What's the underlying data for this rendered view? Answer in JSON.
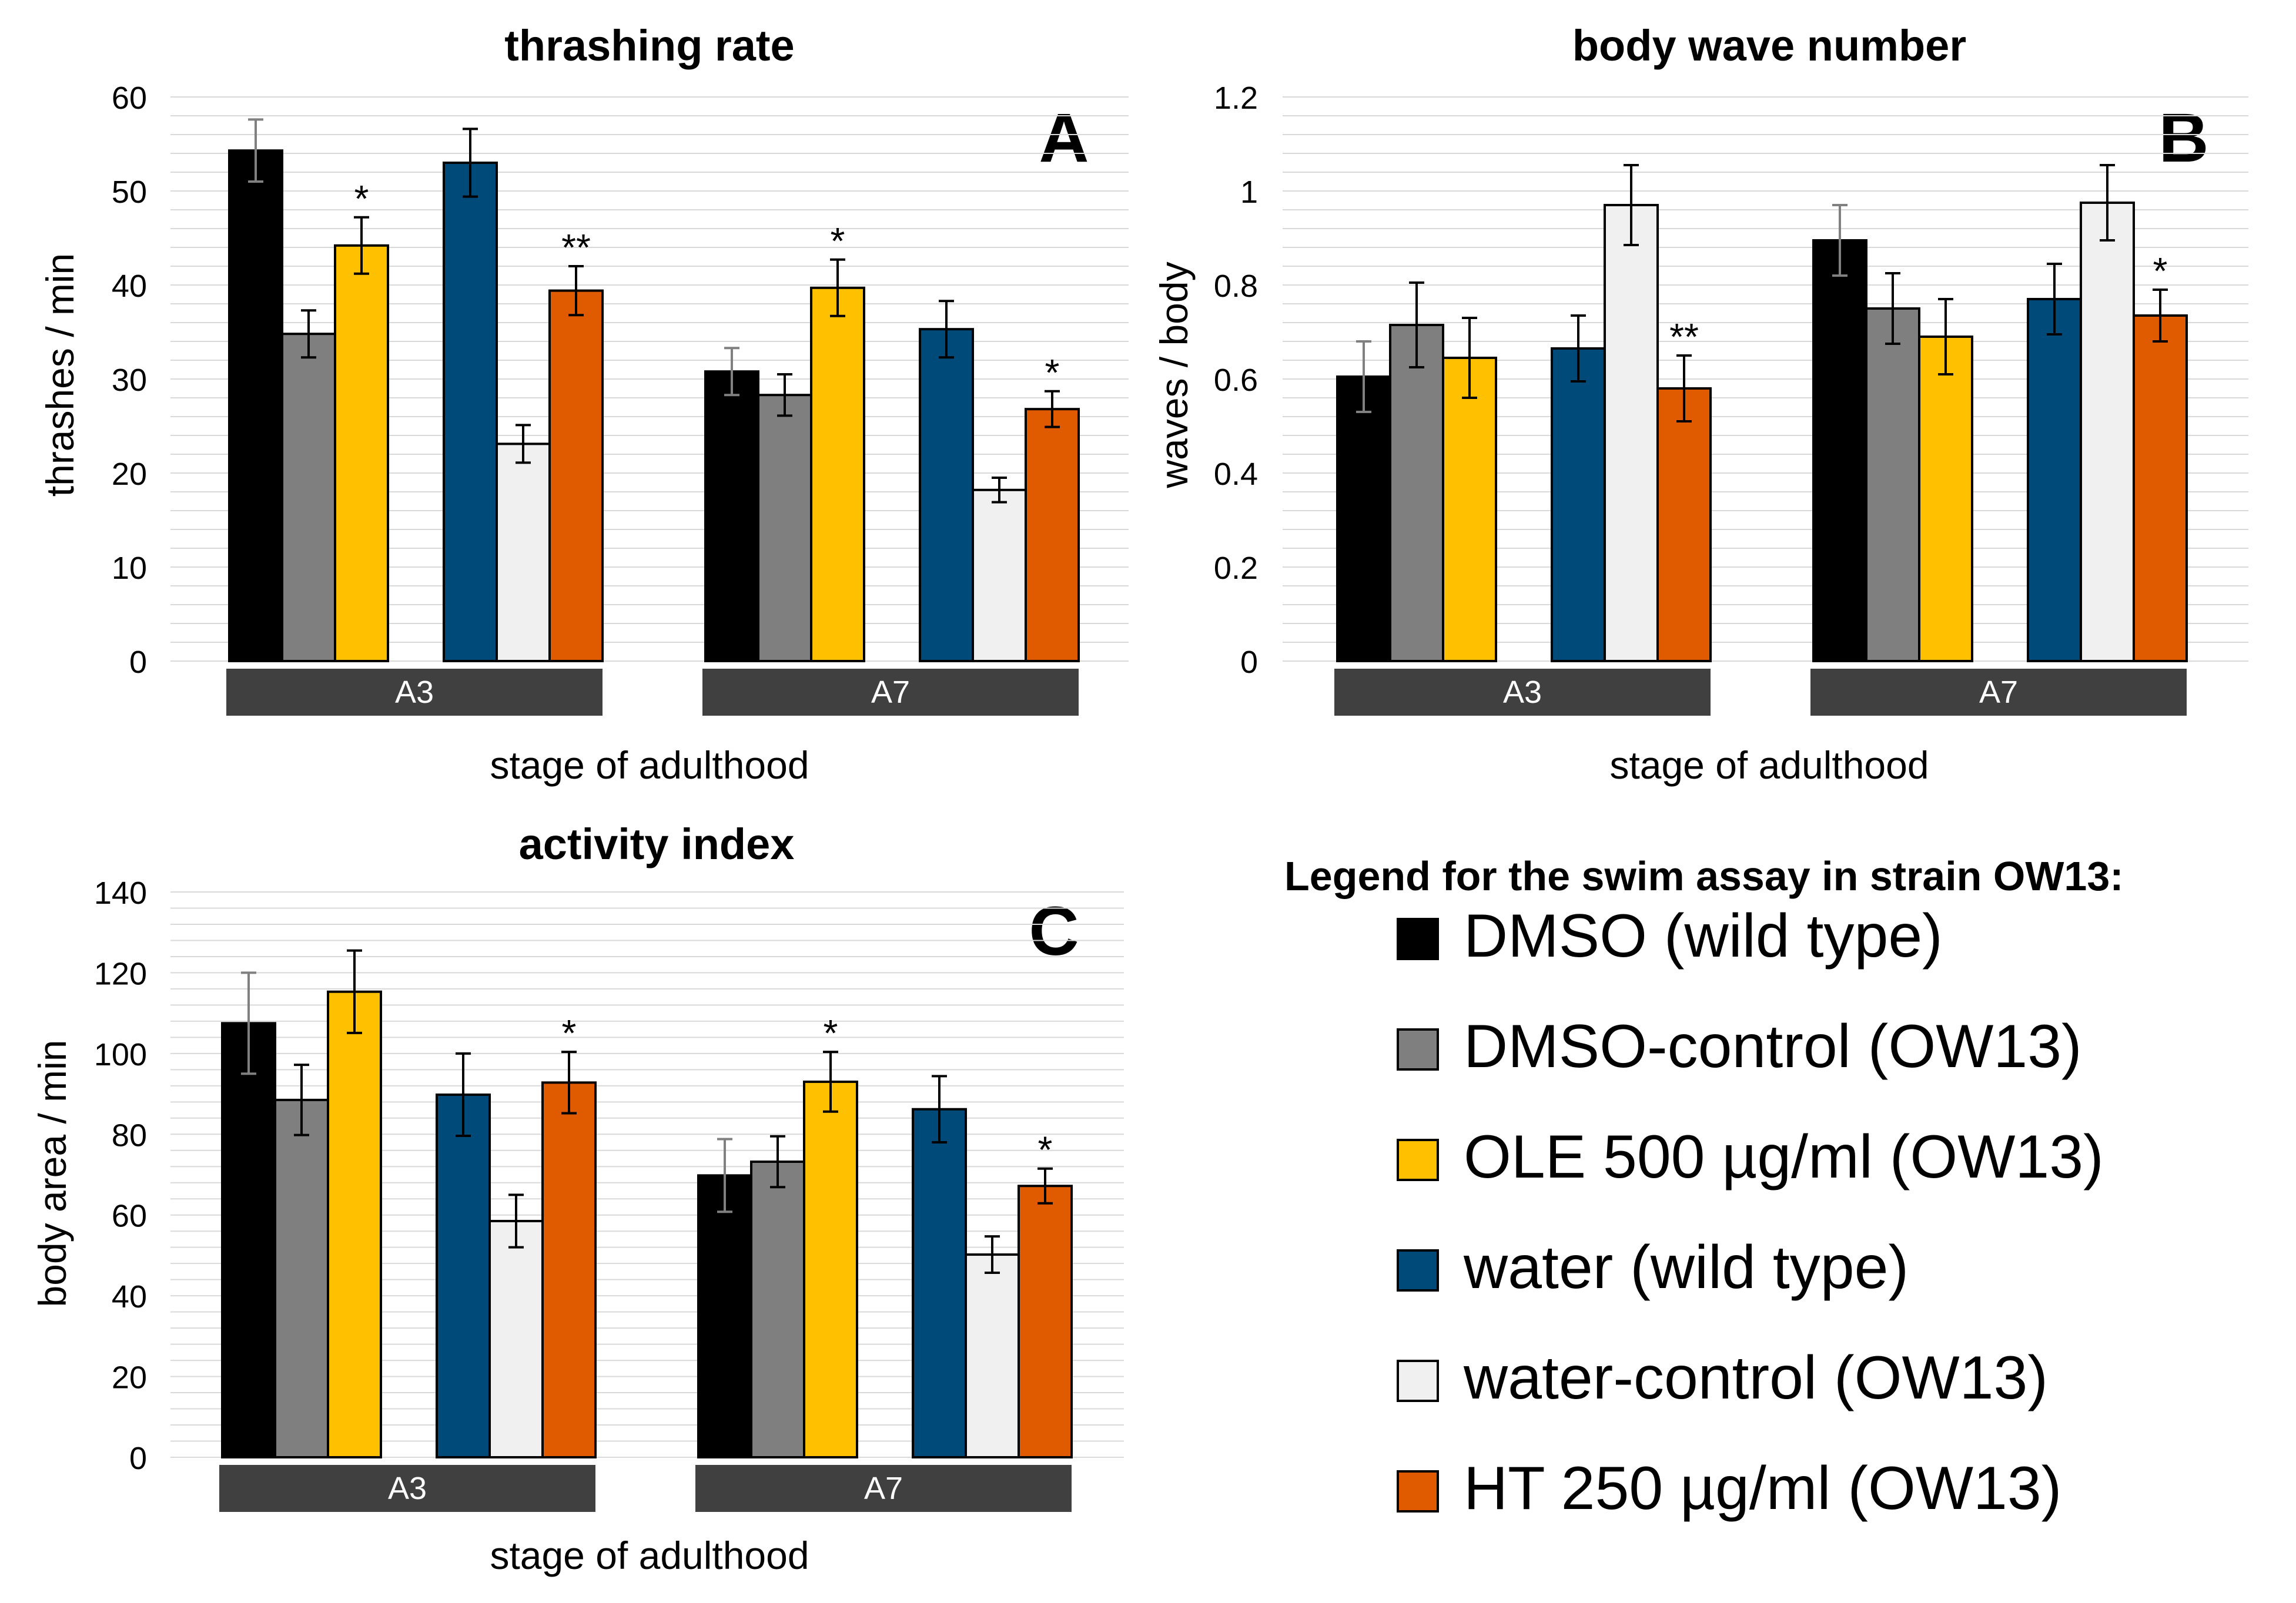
{
  "colors": {
    "DMSO (wild type)": "#000000",
    "DMSO-control (OW13)": "#7f7f7f",
    "OLE 500 µg/ml (OW13)": "#ffc000",
    "water (wild type)": "#004a7a",
    "water-control (OW13)": "#f0f0f0",
    "HT 250 µg/ml (OW13)": "#e05a00",
    "group_band": "#404040",
    "gridline": "#d9d9d9",
    "text": "#000000"
  },
  "legend": {
    "title": "Legend for the swim assay in strain OW13:",
    "entries": [
      "DMSO (wild type)",
      "DMSO-control (OW13)",
      "OLE 500 µg/ml (OW13)",
      "water (wild type)",
      "water-control (OW13)",
      "HT 250 µg/ml (OW13)"
    ]
  },
  "chart_data": [
    {
      "type": "bar",
      "panel_letter": "A",
      "title": "thrashing rate",
      "xlabel": "stage of adulthood",
      "ylabel": "thrashes / min",
      "ylim": [
        0,
        60
      ],
      "yticks": [
        "0",
        "10",
        "20",
        "30",
        "40",
        "50",
        "60"
      ],
      "ytick_values": [
        0,
        10,
        20,
        30,
        40,
        50,
        60
      ],
      "grid": true,
      "categories": [
        "A3",
        "A7"
      ],
      "series": [
        {
          "name": "DMSO (wild type)",
          "values": [
            54.3,
            30.8
          ],
          "errors": [
            3.3,
            2.5
          ],
          "marks": [
            "",
            ""
          ]
        },
        {
          "name": "DMSO-control (OW13)",
          "values": [
            34.8,
            28.3
          ],
          "errors": [
            2.5,
            2.2
          ],
          "marks": [
            "",
            ""
          ]
        },
        {
          "name": "OLE 500 µg/ml (OW13)",
          "values": [
            44.2,
            39.7
          ],
          "errors": [
            3.0,
            3.0
          ],
          "marks": [
            "*",
            "*"
          ]
        },
        {
          "name": "water (wild type)",
          "values": [
            53.0,
            35.3
          ],
          "errors": [
            3.6,
            3.0
          ],
          "marks": [
            "",
            ""
          ]
        },
        {
          "name": "water-control (OW13)",
          "values": [
            23.1,
            18.2
          ],
          "errors": [
            2.0,
            1.3
          ],
          "marks": [
            "",
            ""
          ]
        },
        {
          "name": "HT 250 µg/ml (OW13)",
          "values": [
            39.4,
            26.8
          ],
          "errors": [
            2.6,
            1.9
          ],
          "marks": [
            "**",
            "*"
          ]
        }
      ]
    },
    {
      "type": "bar",
      "panel_letter": "B",
      "title": "body wave number",
      "xlabel": "stage of adulthood",
      "ylabel": "waves / body",
      "ylim": [
        0,
        1.2
      ],
      "yticks": [
        "0",
        "0.2",
        "0.4",
        "0.6",
        "0.8",
        "1",
        "1.2"
      ],
      "ytick_values": [
        0,
        0.2,
        0.4,
        0.6,
        0.8,
        1.0,
        1.2
      ],
      "grid": true,
      "categories": [
        "A3",
        "A7"
      ],
      "series": [
        {
          "name": "DMSO (wild type)",
          "values": [
            0.605,
            0.895
          ],
          "errors": [
            0.075,
            0.075
          ],
          "marks": [
            "",
            ""
          ]
        },
        {
          "name": "DMSO-control (OW13)",
          "values": [
            0.715,
            0.75
          ],
          "errors": [
            0.09,
            0.075
          ],
          "marks": [
            "",
            ""
          ]
        },
        {
          "name": "OLE 500 µg/ml (OW13)",
          "values": [
            0.645,
            0.69
          ],
          "errors": [
            0.085,
            0.08
          ],
          "marks": [
            "",
            ""
          ]
        },
        {
          "name": "water (wild type)",
          "values": [
            0.665,
            0.77
          ],
          "errors": [
            0.07,
            0.075
          ],
          "marks": [
            "",
            ""
          ]
        },
        {
          "name": "water-control (OW13)",
          "values": [
            0.97,
            0.975
          ],
          "errors": [
            0.085,
            0.08
          ],
          "marks": [
            "",
            ""
          ]
        },
        {
          "name": "HT 250 µg/ml (OW13)",
          "values": [
            0.58,
            0.735
          ],
          "errors": [
            0.07,
            0.055
          ],
          "marks": [
            "**",
            "*"
          ]
        }
      ]
    },
    {
      "type": "bar",
      "panel_letter": "C",
      "title": "activity index",
      "xlabel": "stage of adulthood",
      "ylabel": "body area / min",
      "ylim": [
        0,
        140
      ],
      "yticks": [
        "0",
        "20",
        "40",
        "60",
        "80",
        "100",
        "120",
        "140"
      ],
      "ytick_values": [
        0,
        20,
        40,
        60,
        80,
        100,
        120,
        140
      ],
      "grid": true,
      "categories": [
        "A3",
        "A7"
      ],
      "series": [
        {
          "name": "DMSO (wild type)",
          "values": [
            107.5,
            69.8
          ],
          "errors": [
            12.5,
            9.0
          ],
          "marks": [
            "",
            ""
          ]
        },
        {
          "name": "DMSO-control (OW13)",
          "values": [
            88.5,
            73.2
          ],
          "errors": [
            8.7,
            6.3
          ],
          "marks": [
            "",
            ""
          ]
        },
        {
          "name": "OLE 500 µg/ml (OW13)",
          "values": [
            115.3,
            93.0
          ],
          "errors": [
            10.2,
            7.4
          ],
          "marks": [
            "",
            "*"
          ]
        },
        {
          "name": "water (wild type)",
          "values": [
            89.8,
            86.2
          ],
          "errors": [
            10.2,
            8.2
          ],
          "marks": [
            "",
            ""
          ]
        },
        {
          "name": "water-control (OW13)",
          "values": [
            58.5,
            50.2
          ],
          "errors": [
            6.5,
            4.5
          ],
          "marks": [
            "",
            ""
          ]
        },
        {
          "name": "HT 250 µg/ml (OW13)",
          "values": [
            92.8,
            67.2
          ],
          "errors": [
            7.6,
            4.3
          ],
          "marks": [
            "*",
            "*"
          ]
        }
      ]
    }
  ]
}
